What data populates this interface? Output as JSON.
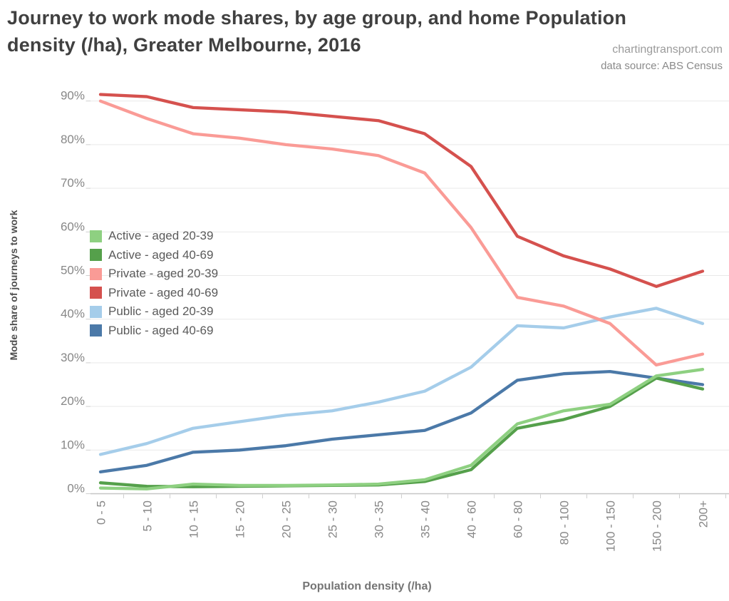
{
  "header": {
    "title_line1": "Journey to work mode shares, by age group, and home Population",
    "title_line2": "density (/ha), Greater Melbourne, 2016",
    "credit_line1": "chartingtransport.com",
    "credit_line2": "data source: ABS Census"
  },
  "chart_data": {
    "type": "line",
    "title": "Journey to work mode shares, by age group, and home Population density (/ha), Greater Melbourne, 2016",
    "xlabel": "Population density (/ha)",
    "ylabel": "Mode share of journeys to work",
    "ylim": [
      0,
      95
    ],
    "ytick_step": 10,
    "ytick_labels": [
      "0%",
      "10%",
      "20%",
      "30%",
      "40%",
      "50%",
      "60%",
      "70%",
      "80%",
      "90%"
    ],
    "grid": "horizontal",
    "legend_position": "inside-top-left",
    "categories": [
      "0 - 5",
      "5 - 10",
      "10 - 15",
      "15 - 20",
      "20 - 25",
      "25 - 30",
      "30 - 35",
      "35 - 40",
      "40 - 60",
      "60 - 80",
      "80 - 100",
      "100 - 150",
      "150 - 200",
      "200+"
    ],
    "series": [
      {
        "name": "Active - aged 20-39",
        "color": "#8ed081",
        "values": [
          1.3,
          1.1,
          2.2,
          1.9,
          1.9,
          2.0,
          2.2,
          3.2,
          6.5,
          16,
          19,
          20.5,
          27,
          28.5
        ]
      },
      {
        "name": "Active - aged 40-69",
        "color": "#55a04b",
        "values": [
          2.5,
          1.7,
          1.6,
          1.7,
          1.8,
          1.9,
          2.0,
          2.8,
          5.5,
          15,
          17,
          20,
          26.5,
          24
        ]
      },
      {
        "name": "Private - aged 20-39",
        "color": "#fa9b96",
        "values": [
          90,
          86,
          82.5,
          81.5,
          80,
          79,
          77.5,
          73.5,
          61,
          45,
          43,
          39,
          29.5,
          32
        ]
      },
      {
        "name": "Private - aged 40-69",
        "color": "#d5514e",
        "values": [
          91.5,
          91,
          88.5,
          88,
          87.5,
          86.5,
          85.5,
          82.5,
          75,
          59,
          54.5,
          51.5,
          47.5,
          51
        ]
      },
      {
        "name": "Public - aged 20-39",
        "color": "#a5cdea",
        "values": [
          9,
          11.5,
          15,
          16.5,
          18,
          19,
          21,
          23.5,
          29,
          38.5,
          38,
          40.5,
          42.5,
          39
        ]
      },
      {
        "name": "Public - aged 40-69",
        "color": "#4b79a8",
        "values": [
          5,
          6.5,
          9.5,
          10,
          11,
          12.5,
          13.5,
          14.5,
          18.5,
          26,
          27.5,
          28,
          26.5,
          25
        ]
      }
    ],
    "draw_order": [
      "Public - aged 20-39",
      "Public - aged 40-69",
      "Active - aged 40-69",
      "Active - aged 20-39",
      "Private - aged 20-39",
      "Private - aged 40-69"
    ]
  }
}
